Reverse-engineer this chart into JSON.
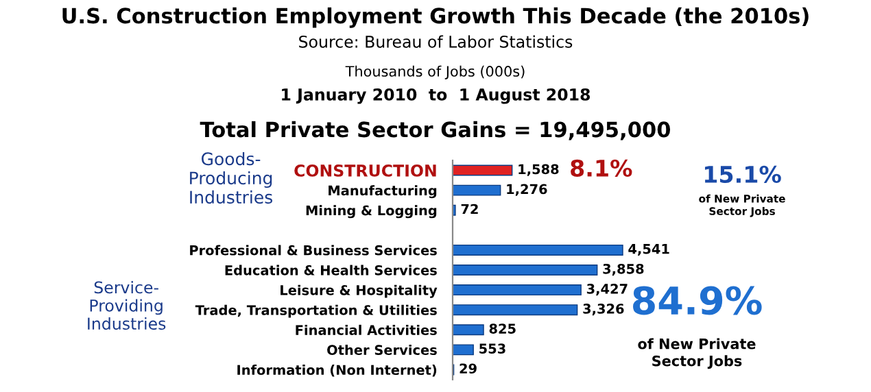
{
  "chart_data": {
    "type": "bar",
    "orientation": "horizontal",
    "title": "U.S. Construction Employment Growth This Decade (the 2010s)",
    "subtitle": "Total Private Sector Gains = 19,495,000",
    "categories": [
      "CONSTRUCTION",
      "Manufacturing",
      "Mining & Logging",
      null,
      "Professional & Business Services",
      "Education & Health Services",
      "Leisure & Hospitality",
      "Trade, Transportation & Utilities",
      "Financial Activities",
      "Other Services",
      "Information (Non Internet)"
    ],
    "values": [
      1588,
      1276,
      72,
      null,
      4541,
      3858,
      3427,
      3326,
      825,
      553,
      29
    ],
    "colors": [
      "#e02222",
      "#1f6fd0",
      "#1f6fd0",
      null,
      "#1f6fd0",
      "#1f6fd0",
      "#1f6fd0",
      "#1f6fd0",
      "#1f6fd0",
      "#1f6fd0",
      "#1f6fd0"
    ],
    "value_labels": [
      "1,588",
      "1,276",
      "72",
      null,
      "4,541",
      "3,858",
      "3,427",
      "3,326",
      "825",
      "553",
      "29"
    ],
    "annotations": [
      "Source: Bureau of Labor Statistics",
      "Thousands of Jobs (000s)",
      "1 January 2010  to  1 August 2018",
      "Goods-Producing Industries",
      "Service-Providing Industries",
      "8.1%",
      "15.1%",
      "of New Private Sector Jobs",
      "84.9%",
      "of New Private Sector Jobs"
    ],
    "grid": false,
    "legend": false
  }
}
